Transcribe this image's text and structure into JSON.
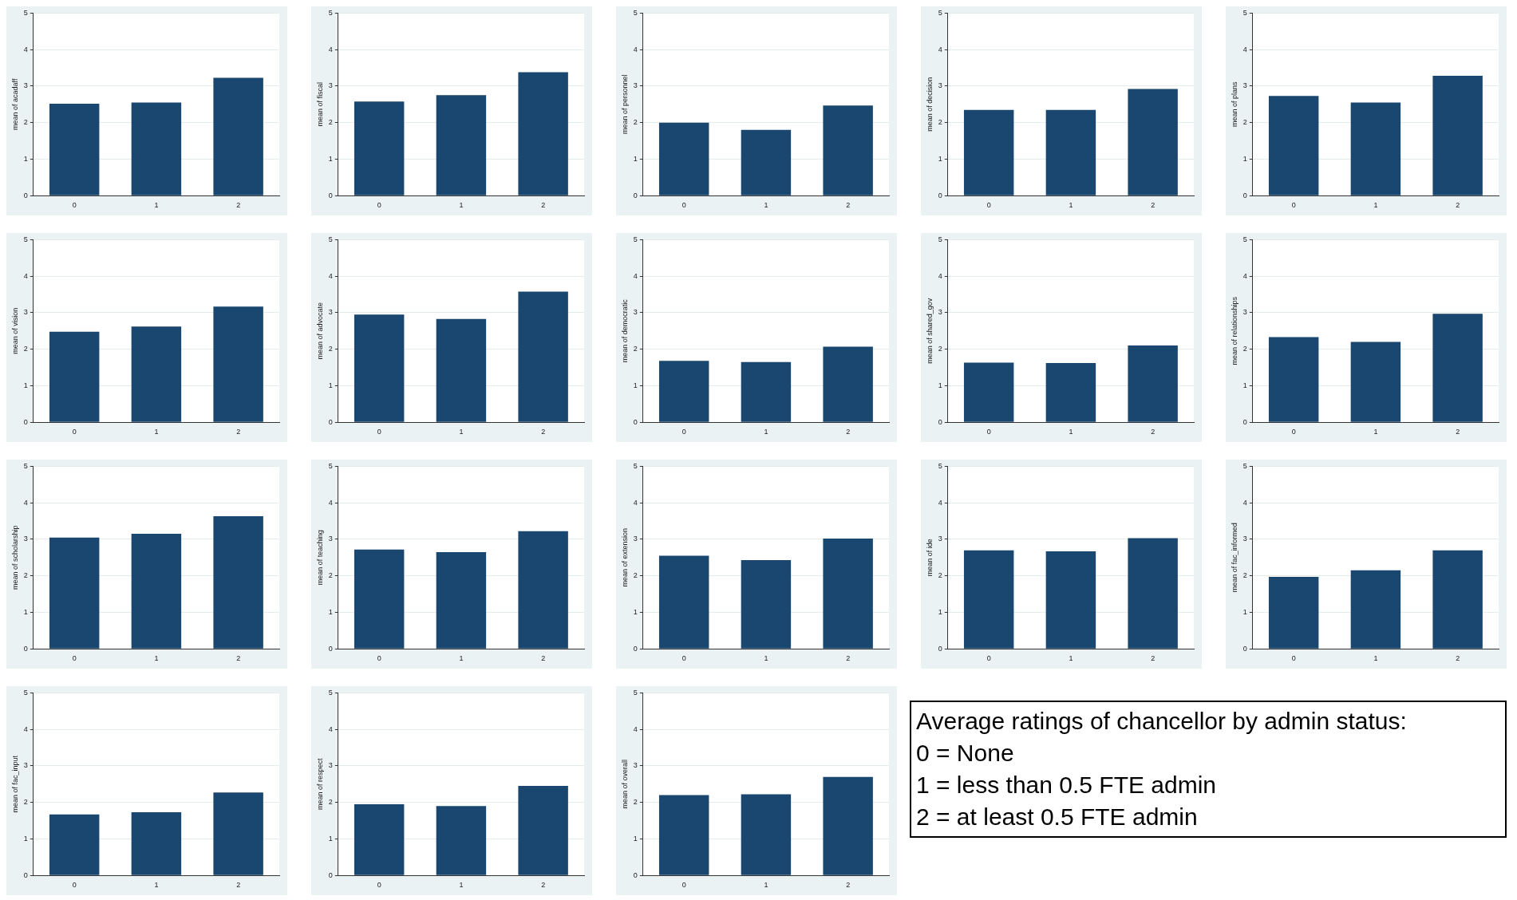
{
  "chart_data": [
    {
      "type": "bar",
      "ylabel": "mean of acadaff",
      "categories": [
        "0",
        "1",
        "2"
      ],
      "values": [
        2.52,
        2.55,
        3.23
      ],
      "color": "#1a476f",
      "ylim": [
        0,
        5
      ],
      "yticks": [
        0,
        1,
        2,
        3,
        4,
        5
      ],
      "grid": "y"
    },
    {
      "type": "bar",
      "ylabel": "mean of fiscal",
      "categories": [
        "0",
        "1",
        "2"
      ],
      "values": [
        2.58,
        2.75,
        3.38
      ],
      "color": "#1a476f",
      "ylim": [
        0,
        5
      ],
      "yticks": [
        0,
        1,
        2,
        3,
        4,
        5
      ],
      "grid": "y"
    },
    {
      "type": "bar",
      "ylabel": "mean of personnel",
      "categories": [
        "0",
        "1",
        "2"
      ],
      "values": [
        2.0,
        1.8,
        2.47
      ],
      "color": "#1a476f",
      "ylim": [
        0,
        5
      ],
      "yticks": [
        0,
        1,
        2,
        3,
        4,
        5
      ],
      "grid": "y"
    },
    {
      "type": "bar",
      "ylabel": "mean of decision",
      "categories": [
        "0",
        "1",
        "2"
      ],
      "values": [
        2.35,
        2.35,
        2.92
      ],
      "color": "#1a476f",
      "ylim": [
        0,
        5
      ],
      "yticks": [
        0,
        1,
        2,
        3,
        4,
        5
      ],
      "grid": "y"
    },
    {
      "type": "bar",
      "ylabel": "mean of plans",
      "categories": [
        "0",
        "1",
        "2"
      ],
      "values": [
        2.73,
        2.55,
        3.28
      ],
      "color": "#1a476f",
      "ylim": [
        0,
        5
      ],
      "yticks": [
        0,
        1,
        2,
        3,
        4,
        5
      ],
      "grid": "y"
    },
    {
      "type": "bar",
      "ylabel": "mean of vision",
      "categories": [
        "0",
        "1",
        "2"
      ],
      "values": [
        2.48,
        2.62,
        3.17
      ],
      "color": "#1a476f",
      "ylim": [
        0,
        5
      ],
      "yticks": [
        0,
        1,
        2,
        3,
        4,
        5
      ],
      "grid": "y"
    },
    {
      "type": "bar",
      "ylabel": "mean of advocate",
      "categories": [
        "0",
        "1",
        "2"
      ],
      "values": [
        2.95,
        2.83,
        3.58
      ],
      "color": "#1a476f",
      "ylim": [
        0,
        5
      ],
      "yticks": [
        0,
        1,
        2,
        3,
        4,
        5
      ],
      "grid": "y"
    },
    {
      "type": "bar",
      "ylabel": "mean of democratic",
      "categories": [
        "0",
        "1",
        "2"
      ],
      "values": [
        1.68,
        1.65,
        2.07
      ],
      "color": "#1a476f",
      "ylim": [
        0,
        5
      ],
      "yticks": [
        0,
        1,
        2,
        3,
        4,
        5
      ],
      "grid": "y"
    },
    {
      "type": "bar",
      "ylabel": "mean of shared_gov",
      "categories": [
        "0",
        "1",
        "2"
      ],
      "values": [
        1.63,
        1.62,
        2.1
      ],
      "color": "#1a476f",
      "ylim": [
        0,
        5
      ],
      "yticks": [
        0,
        1,
        2,
        3,
        4,
        5
      ],
      "grid": "y"
    },
    {
      "type": "bar",
      "ylabel": "mean of relationships",
      "categories": [
        "0",
        "1",
        "2"
      ],
      "values": [
        2.33,
        2.2,
        2.97
      ],
      "color": "#1a476f",
      "ylim": [
        0,
        5
      ],
      "yticks": [
        0,
        1,
        2,
        3,
        4,
        5
      ],
      "grid": "y"
    },
    {
      "type": "bar",
      "ylabel": "mean of scholarship",
      "categories": [
        "0",
        "1",
        "2"
      ],
      "values": [
        3.05,
        3.15,
        3.63
      ],
      "color": "#1a476f",
      "ylim": [
        0,
        5
      ],
      "yticks": [
        0,
        1,
        2,
        3,
        4,
        5
      ],
      "grid": "y"
    },
    {
      "type": "bar",
      "ylabel": "mean of teaching",
      "categories": [
        "0",
        "1",
        "2"
      ],
      "values": [
        2.72,
        2.65,
        3.22
      ],
      "color": "#1a476f",
      "ylim": [
        0,
        5
      ],
      "yticks": [
        0,
        1,
        2,
        3,
        4,
        5
      ],
      "grid": "y"
    },
    {
      "type": "bar",
      "ylabel": "mean of extension",
      "categories": [
        "0",
        "1",
        "2"
      ],
      "values": [
        2.55,
        2.43,
        3.02
      ],
      "color": "#1a476f",
      "ylim": [
        0,
        5
      ],
      "yticks": [
        0,
        1,
        2,
        3,
        4,
        5
      ],
      "grid": "y"
    },
    {
      "type": "bar",
      "ylabel": "mean of ide",
      "categories": [
        "0",
        "1",
        "2"
      ],
      "values": [
        2.7,
        2.67,
        3.03
      ],
      "color": "#1a476f",
      "ylim": [
        0,
        5
      ],
      "yticks": [
        0,
        1,
        2,
        3,
        4,
        5
      ],
      "grid": "y"
    },
    {
      "type": "bar",
      "ylabel": "mean of fac_informed",
      "categories": [
        "0",
        "1",
        "2"
      ],
      "values": [
        1.97,
        2.15,
        2.7
      ],
      "color": "#1a476f",
      "ylim": [
        0,
        5
      ],
      "yticks": [
        0,
        1,
        2,
        3,
        4,
        5
      ],
      "grid": "y"
    },
    {
      "type": "bar",
      "ylabel": "mean of fac_input",
      "categories": [
        "0",
        "1",
        "2"
      ],
      "values": [
        1.67,
        1.73,
        2.27
      ],
      "color": "#1a476f",
      "ylim": [
        0,
        5
      ],
      "yticks": [
        0,
        1,
        2,
        3,
        4,
        5
      ],
      "grid": "y"
    },
    {
      "type": "bar",
      "ylabel": "mean of respect",
      "categories": [
        "0",
        "1",
        "2"
      ],
      "values": [
        1.95,
        1.9,
        2.45
      ],
      "color": "#1a476f",
      "ylim": [
        0,
        5
      ],
      "yticks": [
        0,
        1,
        2,
        3,
        4,
        5
      ],
      "grid": "y"
    },
    {
      "type": "bar",
      "ylabel": "mean of overall",
      "categories": [
        "0",
        "1",
        "2"
      ],
      "values": [
        2.2,
        2.22,
        2.7
      ],
      "color": "#1a476f",
      "ylim": [
        0,
        5
      ],
      "yticks": [
        0,
        1,
        2,
        3,
        4,
        5
      ],
      "grid": "y"
    },
    {
      "type": "other",
      "annotations": [
        "Average ratings of chancellor by admin status:",
        "0 = None",
        "1 = less than 0.5 FTE admin",
        "2 = at least 0.5 FTE admin"
      ]
    }
  ]
}
